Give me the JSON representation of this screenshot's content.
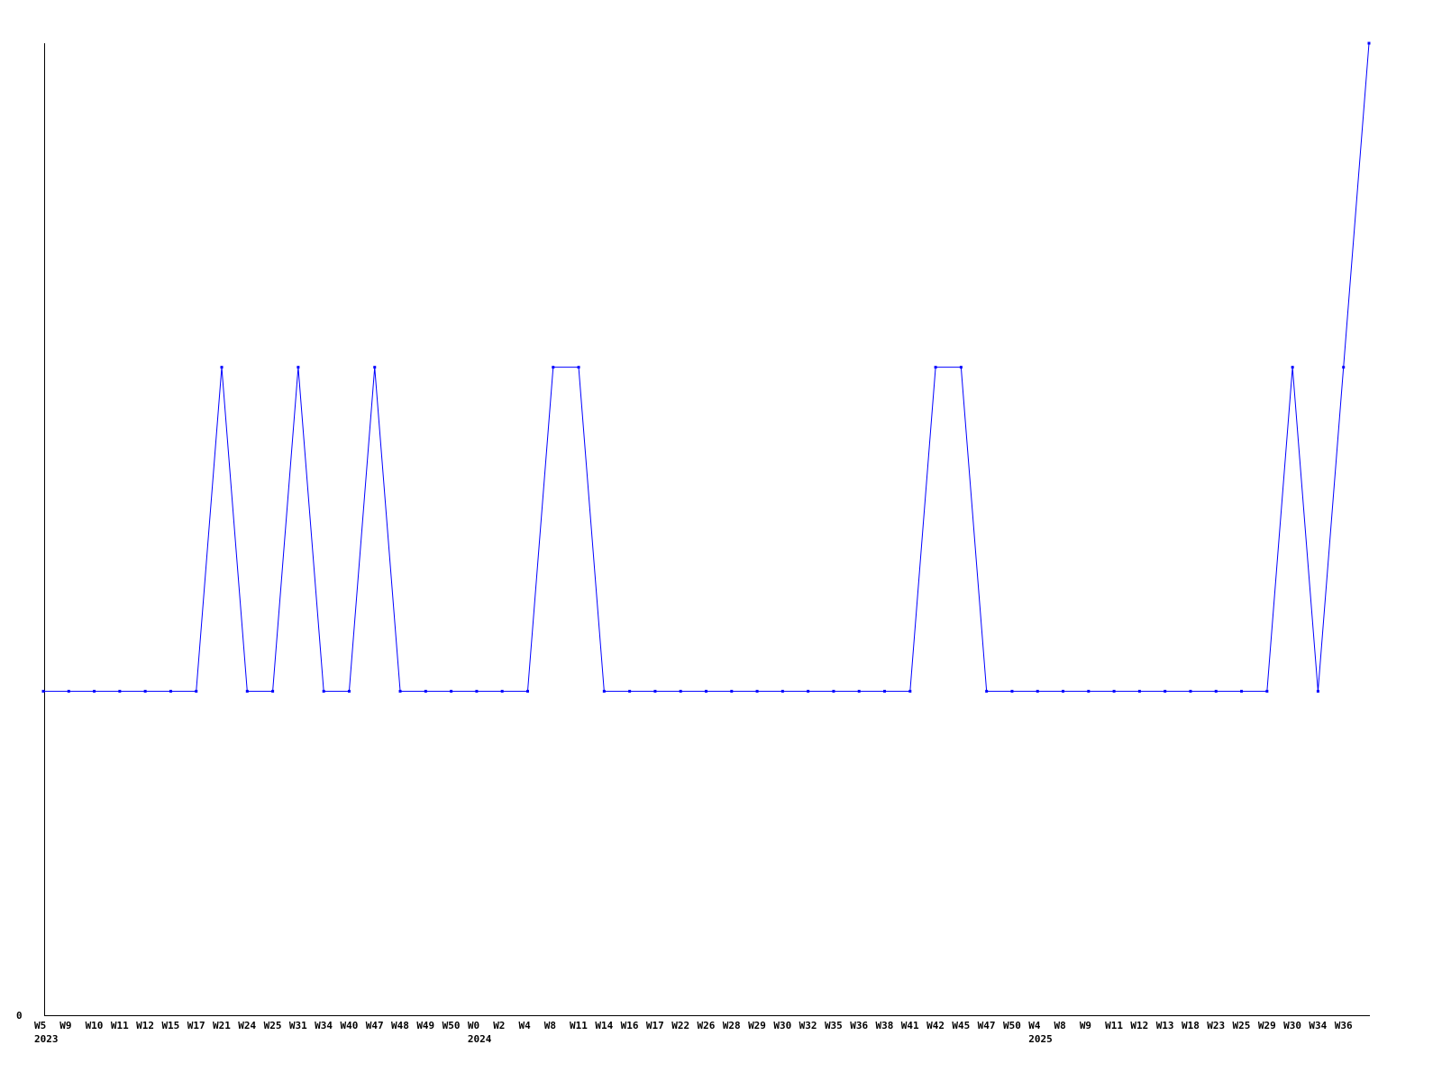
{
  "chart_data": {
    "type": "line",
    "title": "",
    "xlabel": "",
    "ylabel": "",
    "ylim": [
      0,
      3
    ],
    "y_tick_labels": [
      "0"
    ],
    "grid": false,
    "line_color": "#0000ff",
    "categories": [
      "W5",
      "W9",
      "W10",
      "W11",
      "W12",
      "W15",
      "W17",
      "W21",
      "W24",
      "W25",
      "W31",
      "W34",
      "W40",
      "W47",
      "W48",
      "W49",
      "W50",
      "W0",
      "W2",
      "W4",
      "W8",
      "W11",
      "W14",
      "W16",
      "W17",
      "W22",
      "W26",
      "W28",
      "W29",
      "W30",
      "W32",
      "W35",
      "W36",
      "W38",
      "W41",
      "W42",
      "W45",
      "W47",
      "W50",
      "W4",
      "W8",
      "W9",
      "W11",
      "W12",
      "W13",
      "W18",
      "W23",
      "W25",
      "W29",
      "W30",
      "W34",
      "W36",
      ""
    ],
    "year_labels": [
      {
        "index": 0,
        "label": "2023"
      },
      {
        "index": 17,
        "label": "2024"
      },
      {
        "index": 39,
        "label": "2025"
      }
    ],
    "series": [
      {
        "values": [
          1,
          1,
          1,
          1,
          1,
          1,
          1,
          2,
          1,
          1,
          2,
          1,
          1,
          2,
          1,
          1,
          1,
          1,
          1,
          1,
          2,
          2,
          1,
          1,
          1,
          1,
          1,
          1,
          1,
          1,
          1,
          1,
          1,
          1,
          1,
          2,
          2,
          1,
          1,
          1,
          1,
          1,
          1,
          1,
          1,
          1,
          1,
          1,
          1,
          2,
          1,
          2,
          3
        ]
      }
    ]
  }
}
